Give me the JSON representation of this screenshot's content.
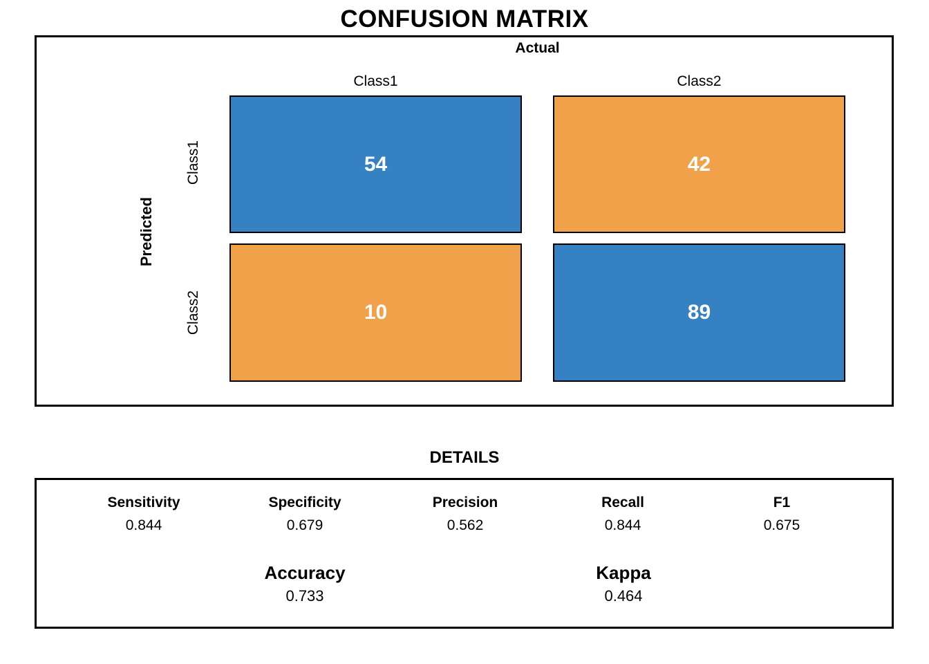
{
  "title": "CONFUSION MATRIX",
  "colors": {
    "blue": "#3581C1",
    "orange": "#F2A14B",
    "border": "#000000",
    "cell_text": "#FFFFFF"
  },
  "matrix": {
    "axis_top": "Actual",
    "axis_left": "Predicted",
    "col_labels": [
      "Class1",
      "Class2"
    ],
    "row_labels": [
      "Class1",
      "Class2"
    ],
    "cells": [
      {
        "row": "Class1",
        "col": "Class1",
        "value": "54",
        "color": "#3581C1"
      },
      {
        "row": "Class1",
        "col": "Class2",
        "value": "42",
        "color": "#F2A14B"
      },
      {
        "row": "Class2",
        "col": "Class1",
        "value": "10",
        "color": "#F2A14B"
      },
      {
        "row": "Class2",
        "col": "Class2",
        "value": "89",
        "color": "#3581C1"
      }
    ]
  },
  "details": {
    "title": "DETAILS",
    "stats": [
      {
        "label": "Sensitivity",
        "value": "0.844"
      },
      {
        "label": "Specificity",
        "value": "0.679"
      },
      {
        "label": "Precision",
        "value": "0.562"
      },
      {
        "label": "Recall",
        "value": "0.844"
      },
      {
        "label": "F1",
        "value": "0.675"
      }
    ],
    "overall": [
      {
        "label": "Accuracy",
        "value": "0.733"
      },
      {
        "label": "Kappa",
        "value": "0.464"
      }
    ]
  },
  "chart_data": {
    "type": "heatmap",
    "title": "CONFUSION MATRIX",
    "xlabel": "Actual",
    "ylabel": "Predicted",
    "x_categories": [
      "Class1",
      "Class2"
    ],
    "y_categories": [
      "Class1",
      "Class2"
    ],
    "matrix": [
      [
        54,
        42
      ],
      [
        10,
        89
      ]
    ],
    "cell_colors": [
      [
        "#3581C1",
        "#F2A14B"
      ],
      [
        "#F2A14B",
        "#3581C1"
      ]
    ],
    "value_label_color": "#FFFFFF",
    "metrics": {
      "Sensitivity": 0.844,
      "Specificity": 0.679,
      "Precision": 0.562,
      "Recall": 0.844,
      "F1": 0.675,
      "Accuracy": 0.733,
      "Kappa": 0.464
    },
    "legend": "off",
    "grid": "off"
  }
}
